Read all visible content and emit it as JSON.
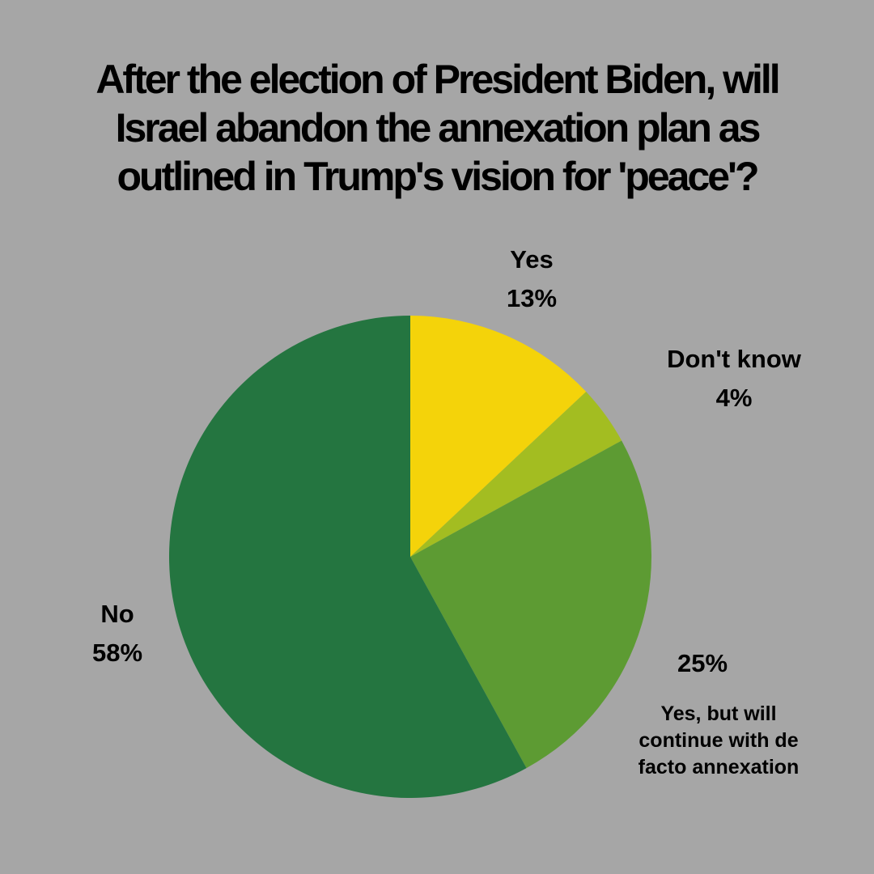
{
  "title_lines": [
    "After the election of President Biden, will",
    "Israel abandon the annexation plan  as",
    "outlined in Trump's vision for 'peace'?"
  ],
  "background_color": "#a6a6a6",
  "chart_data": {
    "type": "pie",
    "title": "After the election of President Biden, will Israel abandon the annexation plan  as outlined in Trump's vision for 'peace'?",
    "start_angle_deg": 0,
    "direction": "clockwise",
    "slices": [
      {
        "name": "Yes",
        "label": "Yes",
        "value": 13,
        "value_label": "13%",
        "color": "#f4d30a"
      },
      {
        "name": "Don't know",
        "label": "Don't know",
        "value": 4,
        "value_label": "4%",
        "color": "#a3bd21"
      },
      {
        "name": "Yes, but will continue with de facto annexation",
        "label_lines": [
          "Yes, but will",
          "continue with de",
          "facto annexation"
        ],
        "value": 25,
        "value_label": "25%",
        "color": "#5d9b33"
      },
      {
        "name": "No",
        "label": "No",
        "value": 58,
        "value_label": "58%",
        "color": "#247540"
      }
    ]
  }
}
